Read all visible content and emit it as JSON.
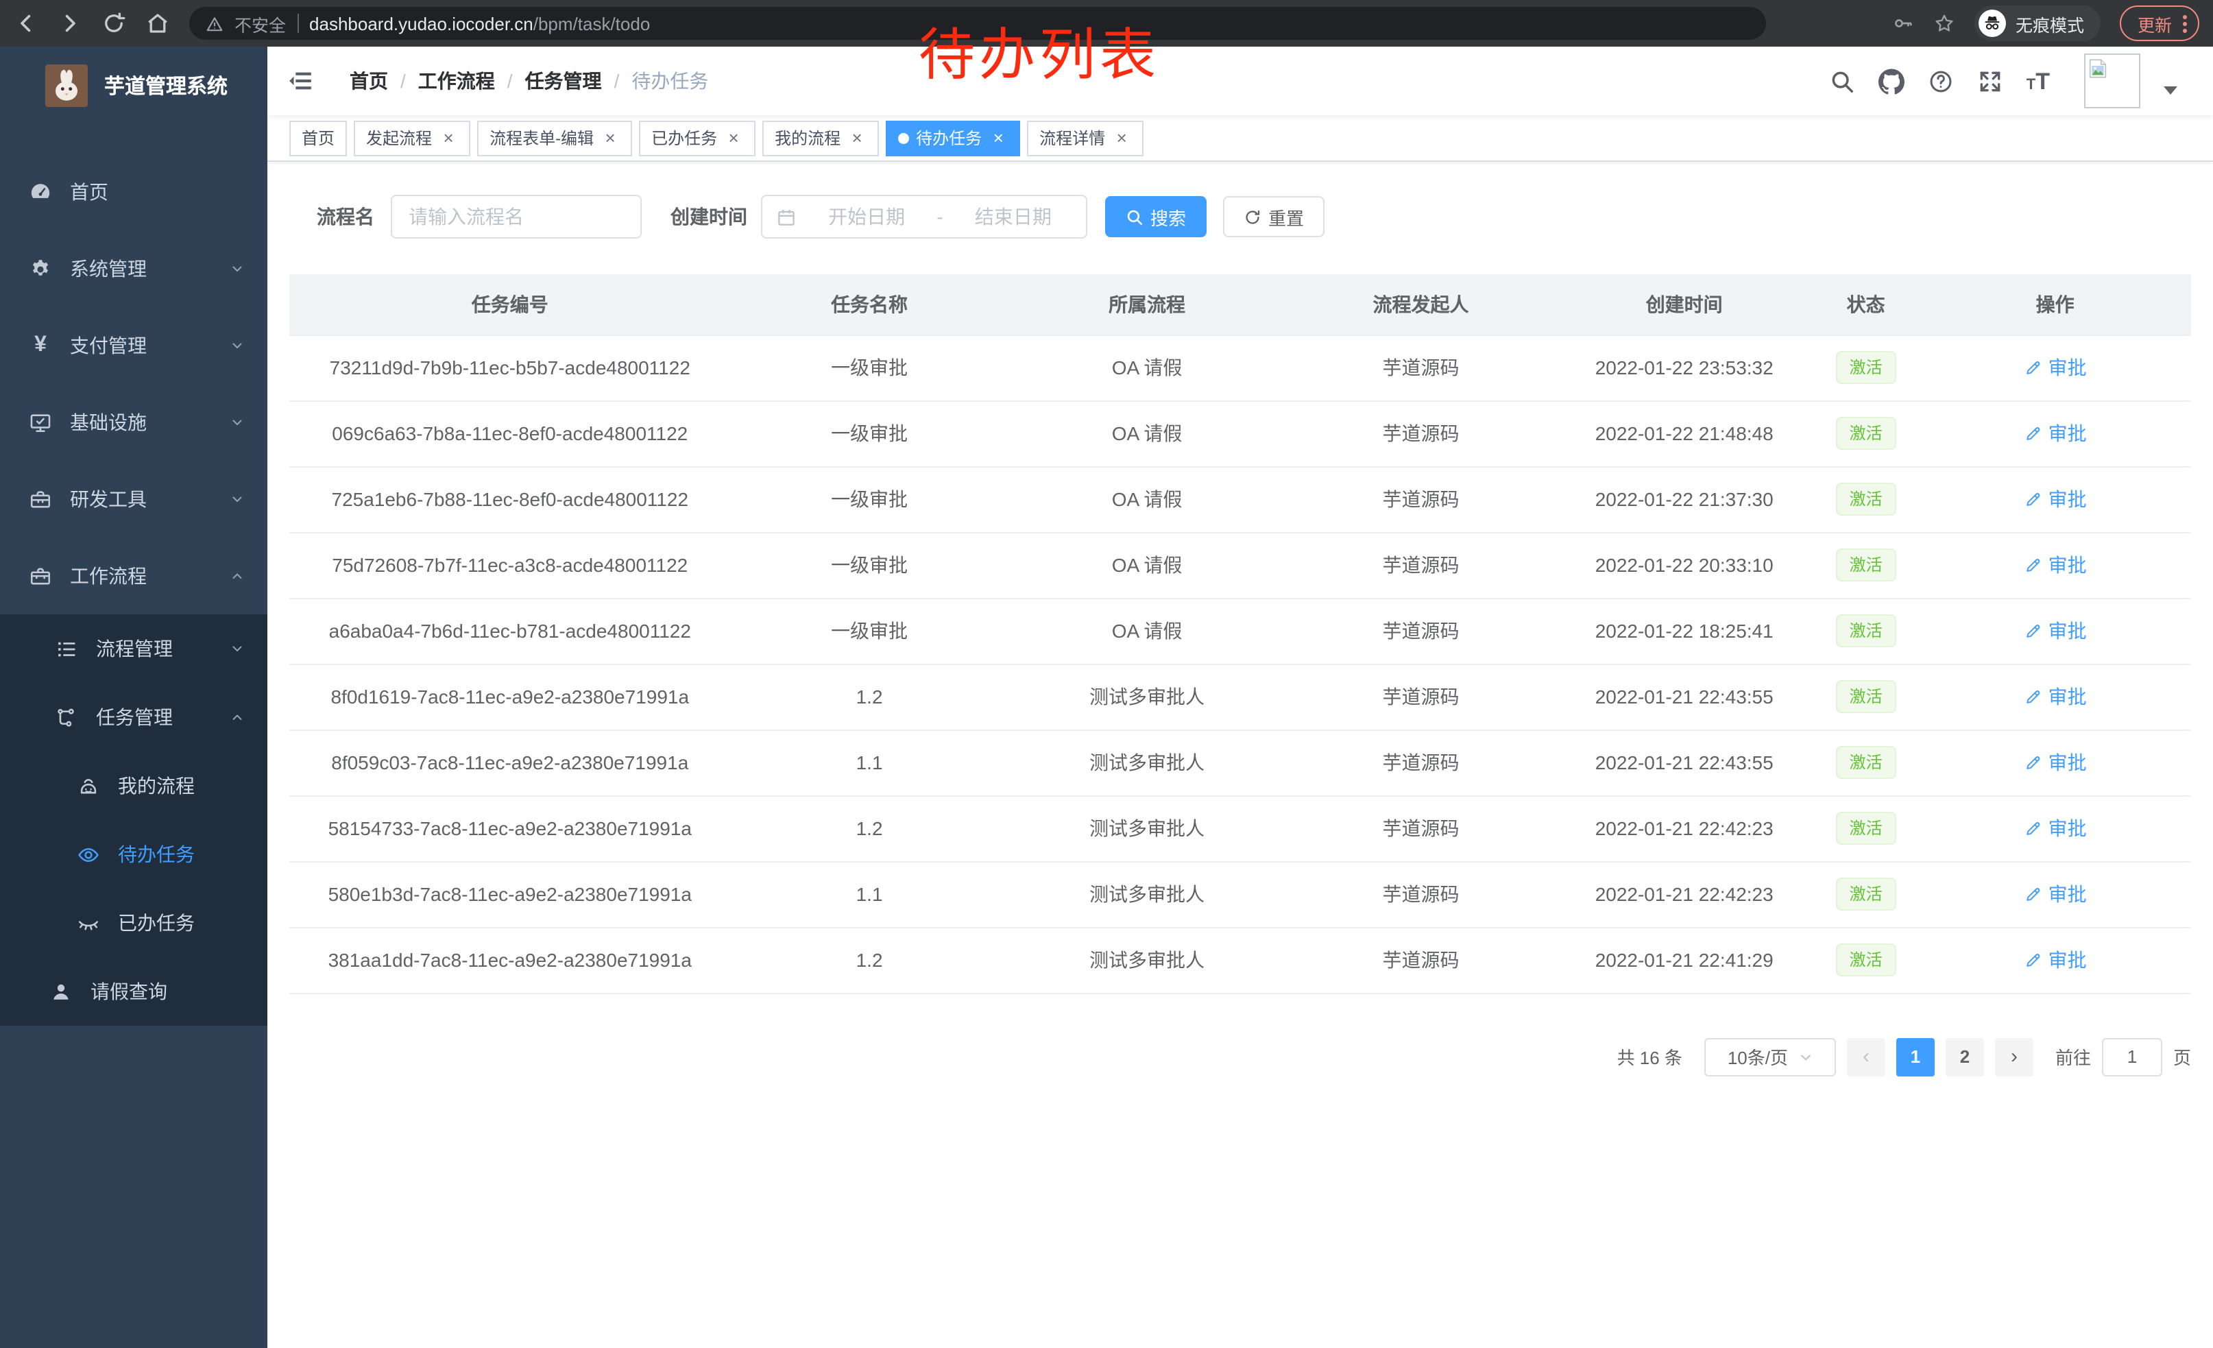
{
  "annotation": {
    "text": "待办列表",
    "color": "#fb2b10"
  },
  "browser": {
    "security_label": "不安全",
    "url_host": "dashboard.yudao.iocoder.cn",
    "url_path": "/bpm/task/todo",
    "incognito_label": "无痕模式",
    "update_label": "更新",
    "nav_icons": [
      "back-icon",
      "forward-icon",
      "reload-icon",
      "home-icon"
    ],
    "right_icons": [
      "key-icon",
      "star-icon",
      "incognito-icon",
      "more-vertical-icon"
    ]
  },
  "sidebar": {
    "title": "芋道管理系统",
    "logo_icon": "rabbit-logo",
    "menu": [
      {
        "key": "home",
        "label": "首页",
        "icon": "dashboard-icon",
        "level": 1,
        "dark": false,
        "arrow": null,
        "active": false
      },
      {
        "key": "system",
        "label": "系统管理",
        "icon": "gear-icon",
        "level": 1,
        "dark": false,
        "arrow": "down",
        "active": false
      },
      {
        "key": "payment",
        "label": "支付管理",
        "icon": "yen-icon",
        "level": 1,
        "dark": false,
        "arrow": "down",
        "active": false
      },
      {
        "key": "infra",
        "label": "基础设施",
        "icon": "monitor-icon",
        "level": 1,
        "dark": false,
        "arrow": "down",
        "active": false
      },
      {
        "key": "devtools",
        "label": "研发工具",
        "icon": "toolbox-icon",
        "level": 1,
        "dark": false,
        "arrow": "down",
        "active": false
      },
      {
        "key": "workflow",
        "label": "工作流程",
        "icon": "briefcase-icon",
        "level": 1,
        "dark": false,
        "arrow": "up",
        "active": false
      },
      {
        "key": "process-mgmt",
        "label": "流程管理",
        "icon": "list-icon",
        "level": 2,
        "dark": true,
        "arrow": "down",
        "active": false
      },
      {
        "key": "task-mgmt",
        "label": "任务管理",
        "icon": "tree-icon",
        "level": 2,
        "dark": true,
        "arrow": "up",
        "active": false
      },
      {
        "key": "my-process",
        "label": "我的流程",
        "icon": "robot-icon",
        "level": 3,
        "dark": true,
        "arrow": null,
        "active": false
      },
      {
        "key": "todo-task",
        "label": "待办任务",
        "icon": "eye-icon",
        "level": 3,
        "dark": true,
        "arrow": null,
        "active": true
      },
      {
        "key": "done-task",
        "label": "已办任务",
        "icon": "eye-closed-icon",
        "level": 3,
        "dark": true,
        "arrow": null,
        "active": false
      },
      {
        "key": "leave-query",
        "label": "请假查询",
        "icon": "user-icon",
        "level": 2,
        "dark": true,
        "arrow": null,
        "active": false
      }
    ]
  },
  "header": {
    "breadcrumb": [
      "首页",
      "工作流程",
      "任务管理",
      "待办任务"
    ],
    "icons": [
      "search-icon",
      "github-icon",
      "help-icon",
      "fullscreen-icon",
      "font-size-icon",
      "avatar",
      "caret-down-icon"
    ]
  },
  "tabs": [
    {
      "key": "home",
      "label": "首页",
      "closable": false,
      "active": false
    },
    {
      "key": "start-process",
      "label": "发起流程",
      "closable": true,
      "active": false
    },
    {
      "key": "form-edit",
      "label": "流程表单-编辑",
      "closable": true,
      "active": false
    },
    {
      "key": "done-task",
      "label": "已办任务",
      "closable": true,
      "active": false
    },
    {
      "key": "my-process",
      "label": "我的流程",
      "closable": true,
      "active": false
    },
    {
      "key": "todo-task",
      "label": "待办任务",
      "closable": true,
      "active": true
    },
    {
      "key": "process-detail",
      "label": "流程详情",
      "closable": true,
      "active": false
    }
  ],
  "filters": {
    "name_label": "流程名",
    "name_placeholder": "请输入流程名",
    "time_label": "创建时间",
    "start_placeholder": "开始日期",
    "range_separator": "-",
    "end_placeholder": "结束日期",
    "search_label": "搜索",
    "reset_label": "重置"
  },
  "table": {
    "columns": [
      "任务编号",
      "任务名称",
      "所属流程",
      "流程发起人",
      "创建时间",
      "状态",
      "操作"
    ],
    "status_label": "激活",
    "action_label": "审批",
    "action_icon": "edit-icon",
    "rows": [
      {
        "id": "73211d9d-7b9b-11ec-b5b7-acde48001122",
        "name": "一级审批",
        "process": "OA 请假",
        "starter": "芋道源码",
        "created": "2022-01-22 23:53:32"
      },
      {
        "id": "069c6a63-7b8a-11ec-8ef0-acde48001122",
        "name": "一级审批",
        "process": "OA 请假",
        "starter": "芋道源码",
        "created": "2022-01-22 21:48:48"
      },
      {
        "id": "725a1eb6-7b88-11ec-8ef0-acde48001122",
        "name": "一级审批",
        "process": "OA 请假",
        "starter": "芋道源码",
        "created": "2022-01-22 21:37:30"
      },
      {
        "id": "75d72608-7b7f-11ec-a3c8-acde48001122",
        "name": "一级审批",
        "process": "OA 请假",
        "starter": "芋道源码",
        "created": "2022-01-22 20:33:10"
      },
      {
        "id": "a6aba0a4-7b6d-11ec-b781-acde48001122",
        "name": "一级审批",
        "process": "OA 请假",
        "starter": "芋道源码",
        "created": "2022-01-22 18:25:41"
      },
      {
        "id": "8f0d1619-7ac8-11ec-a9e2-a2380e71991a",
        "name": "1.2",
        "process": "测试多审批人",
        "starter": "芋道源码",
        "created": "2022-01-21 22:43:55"
      },
      {
        "id": "8f059c03-7ac8-11ec-a9e2-a2380e71991a",
        "name": "1.1",
        "process": "测试多审批人",
        "starter": "芋道源码",
        "created": "2022-01-21 22:43:55"
      },
      {
        "id": "58154733-7ac8-11ec-a9e2-a2380e71991a",
        "name": "1.2",
        "process": "测试多审批人",
        "starter": "芋道源码",
        "created": "2022-01-21 22:42:23"
      },
      {
        "id": "580e1b3d-7ac8-11ec-a9e2-a2380e71991a",
        "name": "1.1",
        "process": "测试多审批人",
        "starter": "芋道源码",
        "created": "2022-01-21 22:42:23"
      },
      {
        "id": "381aa1dd-7ac8-11ec-a9e2-a2380e71991a",
        "name": "1.2",
        "process": "测试多审批人",
        "starter": "芋道源码",
        "created": "2022-01-21 22:41:29"
      }
    ]
  },
  "pagination": {
    "total_label": "共 16 条",
    "page_size": "10条/页",
    "prev_label": "‹",
    "next_label": "›",
    "pages": [
      {
        "label": "1",
        "active": true
      },
      {
        "label": "2",
        "active": false
      }
    ],
    "goto_label": "前往",
    "goto_value": "1",
    "page_suffix": "页"
  },
  "colors": {
    "accent": "#409eff",
    "success_text": "#67c23a",
    "success_bg": "#f0f9eb",
    "success_border": "#e1f3d8",
    "sidebar_bg": "#304156",
    "submenu_bg": "#1f2d3d",
    "chrome_bar": "#35363a",
    "omnibox_bg": "#202124",
    "update_red": "#f28b82",
    "annotation_red": "#fb2b10"
  }
}
